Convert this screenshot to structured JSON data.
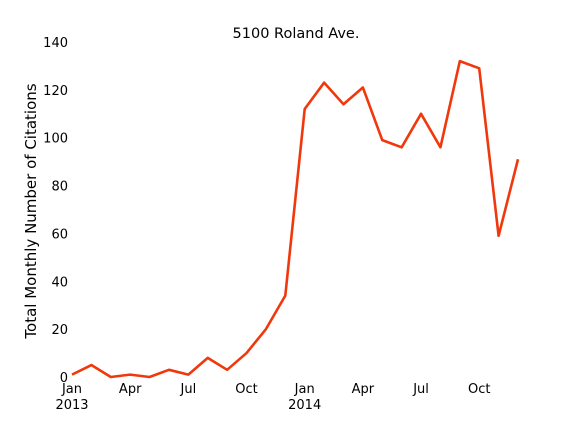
{
  "chart_data": {
    "type": "line",
    "title": "5100 Roland Ave.",
    "xlabel": "",
    "ylabel": "Total Monthly Number of Citations",
    "x": [
      "2013-01",
      "2013-02",
      "2013-03",
      "2013-04",
      "2013-05",
      "2013-06",
      "2013-07",
      "2013-08",
      "2013-09",
      "2013-10",
      "2013-11",
      "2013-12",
      "2014-01",
      "2014-02",
      "2014-03",
      "2014-04",
      "2014-05",
      "2014-06",
      "2014-07",
      "2014-08",
      "2014-09",
      "2014-10",
      "2014-11",
      "2014-12"
    ],
    "series": [
      {
        "values": [
          1,
          5,
          0,
          1,
          0,
          3,
          1,
          8,
          3,
          10,
          20,
          34,
          112,
          123,
          114,
          121,
          99,
          96,
          110,
          96,
          132,
          129,
          59,
          91
        ],
        "color": "#f0380c"
      }
    ],
    "x_ticks": [
      {
        "x": "2013-01",
        "label": "Jan",
        "sublabel": "2013"
      },
      {
        "x": "2013-04",
        "label": "Apr",
        "sublabel": ""
      },
      {
        "x": "2013-07",
        "label": "Jul",
        "sublabel": ""
      },
      {
        "x": "2013-10",
        "label": "Oct",
        "sublabel": ""
      },
      {
        "x": "2014-01",
        "label": "Jan",
        "sublabel": "2014"
      },
      {
        "x": "2014-04",
        "label": "Apr",
        "sublabel": ""
      },
      {
        "x": "2014-07",
        "label": "Jul",
        "sublabel": ""
      },
      {
        "x": "2014-10",
        "label": "Oct",
        "sublabel": ""
      }
    ],
    "y_ticks": [
      0,
      20,
      40,
      60,
      80,
      100,
      120,
      140
    ],
    "ylim": [
      0,
      140
    ],
    "grid": false,
    "legend": "none"
  }
}
